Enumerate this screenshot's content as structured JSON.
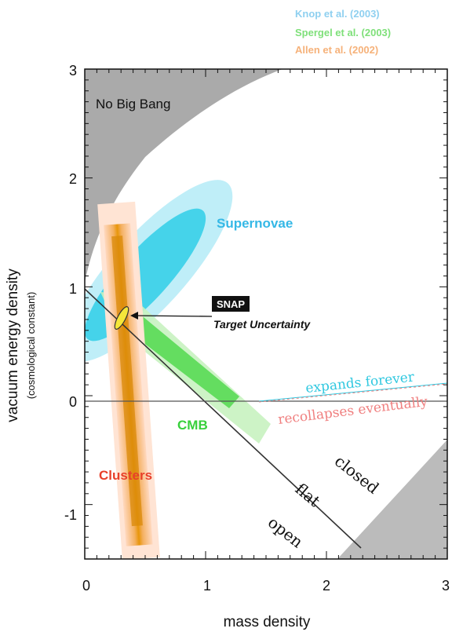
{
  "chart_data": {
    "type": "area",
    "xlabel": "mass density",
    "ylabel": "vacuum energy density",
    "ylabel_sub": "(cosmological constant)",
    "xlim": [
      0,
      3
    ],
    "ylim": [
      -1.5,
      3
    ],
    "x_ticks": [
      0,
      1,
      2,
      3
    ],
    "y_ticks": [
      -1,
      0,
      1,
      2,
      3
    ],
    "grid": false,
    "legend": {
      "placement": "top-right",
      "entries": [
        {
          "label": "Knop et al. (2003)",
          "color": "#8fd0f0"
        },
        {
          "label": "Spergel et al.  (2003)",
          "color": "#7fe07a"
        },
        {
          "label": "Allen et al. (2002)",
          "color": "#f6b27a"
        }
      ]
    },
    "regions": [
      {
        "name": "No Big Bang",
        "label": "No Big Bang",
        "color": "#aaaaaa"
      },
      {
        "name": "Supernovae",
        "label": "Supernovae",
        "center": [
          0.85,
          1.25
        ],
        "color": "#40d0e8"
      },
      {
        "name": "CMB",
        "label": "CMB",
        "color": "#39d04a"
      },
      {
        "name": "Clusters",
        "label": "Clusters",
        "center": [
          0.3,
          0.0
        ],
        "color": "#e8a020"
      },
      {
        "name": "SNAP",
        "label": "SNAP",
        "sublabel": "Target Uncertainty",
        "center": [
          0.28,
          0.72
        ],
        "color": "#f0e030"
      }
    ],
    "lines": [
      {
        "name": "flat",
        "label": "flat",
        "points": [
          [
            0,
            1
          ],
          [
            3,
            -2
          ]
        ]
      },
      {
        "name": "expands-recollapses",
        "labels": [
          "expands forever",
          "recollapses eventually"
        ],
        "colors": [
          "#30c8e0",
          "#f08080"
        ]
      }
    ],
    "annotations": [
      "closed",
      "open"
    ]
  }
}
